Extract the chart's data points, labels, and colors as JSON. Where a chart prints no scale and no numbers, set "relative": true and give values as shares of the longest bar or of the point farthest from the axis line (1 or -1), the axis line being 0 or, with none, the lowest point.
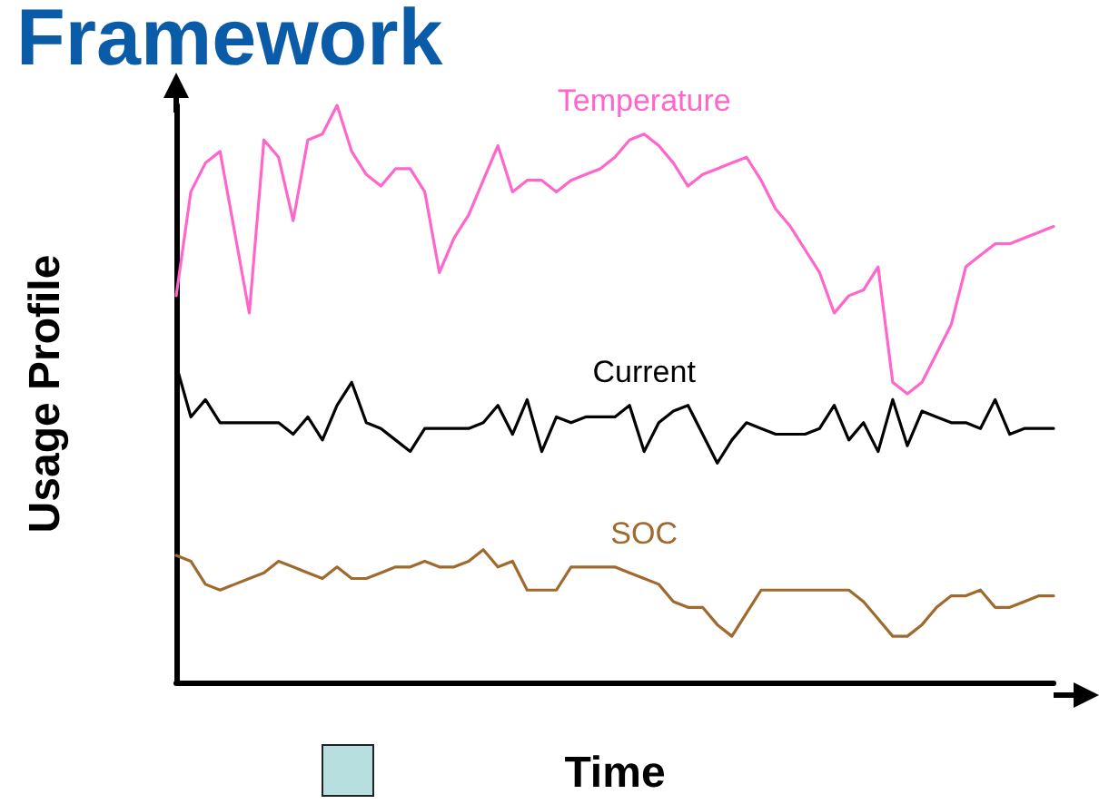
{
  "chart_data": {
    "type": "line",
    "title": "Framework",
    "xlabel": "Time",
    "ylabel": "Usage Profile",
    "relative": true,
    "grid": false,
    "legend": false,
    "categories": [
      null,
      null,
      null,
      null,
      null,
      null,
      null,
      null,
      null,
      null,
      null,
      null,
      null,
      null,
      null,
      null,
      null,
      null,
      null,
      null,
      null,
      null,
      null,
      null,
      null,
      null,
      null,
      null,
      null,
      null,
      null,
      null,
      null,
      null,
      null,
      null,
      null,
      null,
      null,
      null,
      null,
      null,
      null,
      null,
      null,
      null,
      null,
      null,
      null,
      null,
      null,
      null,
      null,
      null,
      null,
      null,
      null,
      null,
      null,
      null,
      null
    ],
    "series": [
      {
        "name": "Temperature",
        "color": "#ff66cc",
        "values": [
          0.67,
          0.85,
          0.9,
          0.92,
          0.78,
          0.64,
          0.94,
          0.91,
          0.8,
          0.94,
          0.95,
          1.0,
          0.92,
          0.88,
          0.86,
          0.89,
          0.89,
          0.85,
          0.71,
          0.77,
          0.81,
          0.87,
          0.93,
          0.85,
          0.87,
          0.87,
          0.85,
          0.87,
          0.88,
          0.89,
          0.91,
          0.94,
          0.95,
          0.93,
          0.9,
          0.86,
          0.88,
          0.89,
          0.9,
          0.91,
          0.87,
          0.82,
          0.79,
          0.75,
          0.71,
          0.64,
          0.67,
          0.68,
          0.72,
          0.52,
          0.5,
          0.52,
          0.57,
          0.62,
          0.72,
          0.74,
          0.76,
          0.76,
          0.77,
          0.78,
          0.79
        ]
      },
      {
        "name": "Current",
        "color": "#000000",
        "values": [
          0.55,
          0.46,
          0.49,
          0.45,
          0.45,
          0.45,
          0.45,
          0.45,
          0.43,
          0.46,
          0.42,
          0.48,
          0.52,
          0.45,
          0.44,
          0.42,
          0.4,
          0.44,
          0.44,
          0.44,
          0.44,
          0.45,
          0.48,
          0.43,
          0.49,
          0.4,
          0.46,
          0.45,
          0.46,
          0.46,
          0.46,
          0.48,
          0.4,
          0.45,
          0.47,
          0.48,
          0.43,
          0.38,
          0.42,
          0.45,
          0.44,
          0.43,
          0.43,
          0.43,
          0.44,
          0.48,
          0.42,
          0.45,
          0.4,
          0.49,
          0.41,
          0.47,
          0.46,
          0.45,
          0.45,
          0.44,
          0.49,
          0.43,
          0.44,
          0.44,
          0.44
        ]
      },
      {
        "name": "SOC",
        "color": "#a0692e",
        "values": [
          0.22,
          0.21,
          0.17,
          0.16,
          0.17,
          0.18,
          0.19,
          0.21,
          0.2,
          0.19,
          0.18,
          0.2,
          0.18,
          0.18,
          0.19,
          0.2,
          0.2,
          0.21,
          0.2,
          0.2,
          0.21,
          0.23,
          0.2,
          0.21,
          0.16,
          0.16,
          0.16,
          0.2,
          0.2,
          0.2,
          0.2,
          0.19,
          0.18,
          0.17,
          0.14,
          0.13,
          0.13,
          0.1,
          0.08,
          0.12,
          0.16,
          0.16,
          0.16,
          0.16,
          0.16,
          0.16,
          0.16,
          0.14,
          0.11,
          0.08,
          0.08,
          0.1,
          0.13,
          0.15,
          0.15,
          0.16,
          0.13,
          0.13,
          0.14,
          0.15,
          0.15
        ]
      }
    ]
  }
}
